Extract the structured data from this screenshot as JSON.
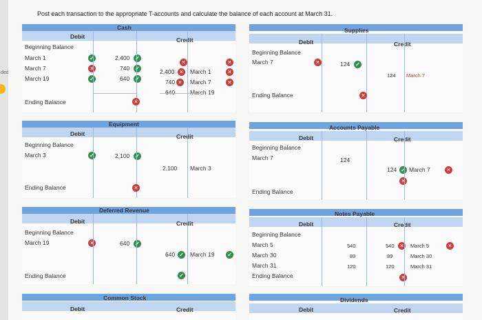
{
  "instruction": "Post each transaction to the appropriate T-accounts and calculate the balance of each account at March 31.",
  "sidebar": {
    "fragment": "ded"
  },
  "labels": {
    "debit": "Debit",
    "credit": "Credit",
    "beginning_balance": "Beginning Balance",
    "ending_balance": "Ending Balance"
  },
  "accounts": {
    "cash": {
      "title": "Cash",
      "debit_rows": [
        "March 1",
        "March 7",
        "March 19"
      ],
      "debit_values": [
        "2,400",
        "740",
        "640"
      ],
      "credit_values": [
        "2,400",
        "740",
        "640"
      ],
      "credit_rows": [
        "March 1",
        "March 7",
        "March 19"
      ]
    },
    "supplies": {
      "title": "Supplies",
      "debit_rows": [
        "March 7"
      ],
      "debit_values": [
        "124"
      ],
      "credit_values": [
        "124"
      ],
      "credit_rows": [
        "March 7"
      ]
    },
    "equipment": {
      "title": "Equipment",
      "debit_rows": [
        "March 3"
      ],
      "debit_values": [
        "2,100"
      ],
      "credit_values": [
        "2,100"
      ],
      "credit_rows": [
        "March 3"
      ]
    },
    "accounts_payable": {
      "title": "Accounts Payable",
      "debit_rows": [
        "March 7"
      ],
      "debit_values": [
        "124"
      ],
      "credit_values": [
        "124"
      ],
      "credit_rows": [
        "March 7"
      ]
    },
    "deferred_revenue": {
      "title": "Deferred Revenue",
      "debit_rows": [
        "March 19"
      ],
      "debit_values": [
        "640"
      ],
      "credit_values": [
        "640"
      ],
      "credit_rows": [
        "March 19"
      ]
    },
    "notes_payable": {
      "title": "Notes Payable",
      "debit_rows": [
        "March 5",
        "March 30",
        "March 31"
      ],
      "debit_values": [
        "540",
        "89",
        "120"
      ],
      "credit_values": [
        "540",
        "89",
        "120"
      ],
      "credit_rows": [
        "March 5",
        "March 30",
        "March 31"
      ]
    },
    "common_stock": {
      "title": "Common Stock"
    },
    "dividends": {
      "title": "Dividends"
    }
  }
}
